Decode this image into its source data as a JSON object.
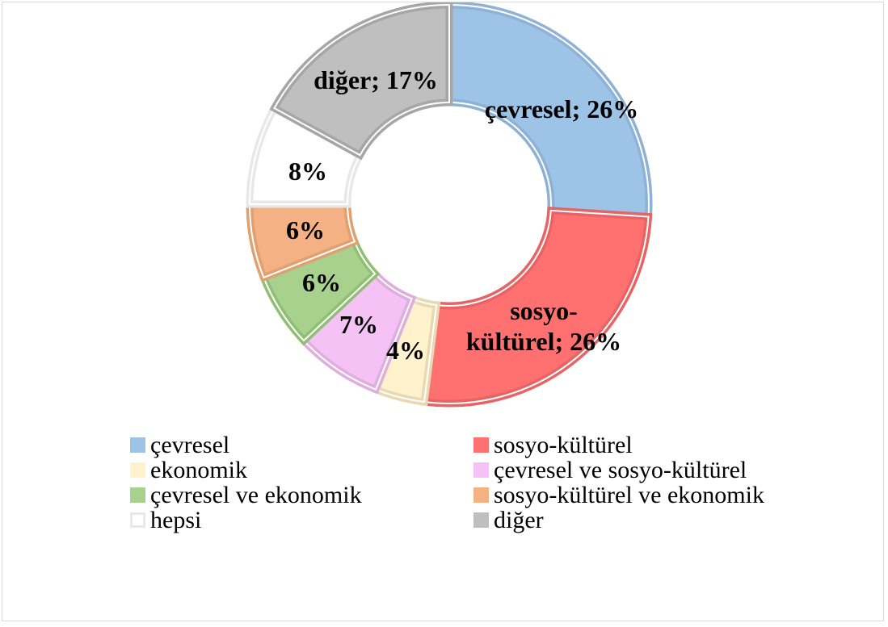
{
  "chart_data": {
    "type": "donut",
    "title": "",
    "legend_position": "bottom",
    "slices": [
      {
        "name": "çevresel",
        "value": 26,
        "label": "çevresel; 26%",
        "color": "#9dc3e6",
        "border": "#8eb2d6"
      },
      {
        "name": "sosyo-kültürel",
        "value": 26,
        "label": "sosyo-kültürel; 26%",
        "color": "#ff7171",
        "border": "#e86464"
      },
      {
        "name": "ekonomik",
        "value": 4,
        "label": "4%",
        "color": "#fff2cc",
        "border": "#e8d9b2"
      },
      {
        "name": "çevresel ve sosyo-kültürel",
        "value": 7,
        "label": "7%",
        "color": "#f4c2f4",
        "border": "#dfaedf"
      },
      {
        "name": "çevresel ve ekonomik",
        "value": 6,
        "label": "6%",
        "color": "#a9d18e",
        "border": "#8fbf73"
      },
      {
        "name": "sosyo-kültürel ve ekonomik",
        "value": 6,
        "label": "6%",
        "color": "#f4b183",
        "border": "#e0a070"
      },
      {
        "name": "hepsi",
        "value": 8,
        "label": "8%",
        "color": "#ffffff",
        "border": "#e8e8e8"
      },
      {
        "name": "diğer",
        "value": 17,
        "label": "diğer; 17%",
        "color": "#bfbfbf",
        "border": "#a6a6a6"
      }
    ]
  }
}
